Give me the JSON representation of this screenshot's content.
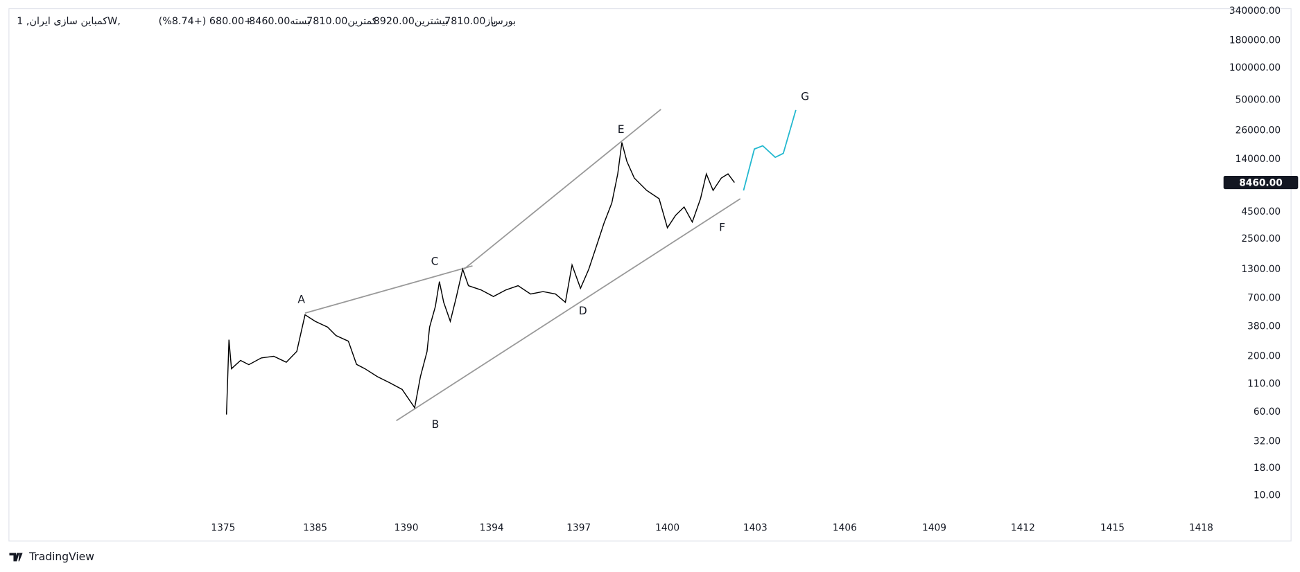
{
  "header": {
    "symbol": "کمباین سازی ایران, 1W, بورس",
    "open_label": "باز",
    "open": "7810.00",
    "high_label": "بیشترین",
    "high": "8920.00",
    "low_label": "کمترین",
    "low": "7810.00",
    "close_label": "بسته",
    "close": "8460.00",
    "change": "+680.00 (+8.74%)"
  },
  "chart_data": {
    "type": "line",
    "log_scale": true,
    "x": [
      1375.36,
      1375.63,
      1375.9,
      1376.89,
      1377.79,
      1379.14,
      1380.5,
      1381.86,
      1383.0,
      1383.9,
      1385.0,
      1385.68,
      1386.14,
      1386.82,
      1387.27,
      1387.73,
      1388.41,
      1389.09,
      1389.77,
      1390.39,
      1390.66,
      1390.97,
      1391.09,
      1391.36,
      1391.55,
      1391.75,
      1392.06,
      1392.33,
      1392.64,
      1392.91,
      1393.5,
      1394.06,
      1394.49,
      1394.91,
      1395.34,
      1395.77,
      1396.2,
      1396.54,
      1396.77,
      1397.06,
      1397.34,
      1397.62,
      1397.85,
      1398.12,
      1398.32,
      1398.46,
      1398.63,
      1398.88,
      1399.3,
      1399.72,
      1400.0,
      1400.28,
      1400.57,
      1400.85,
      1401.13,
      1401.33,
      1401.56,
      1401.84,
      1402.07,
      1402.29
    ],
    "series": [
      {
        "color": "#000000",
        "values": [
          57,
          286,
          153,
          183,
          167,
          193,
          200,
          176,
          222,
          489,
          425,
          375,
          313,
          277,
          168,
          153,
          129,
          113,
          98,
          66,
          129,
          222,
          375,
          585,
          1000,
          640,
          425,
          700,
          1306,
          915,
          836,
          725,
          836,
          915,
          765,
          806,
          765,
          640,
          1430,
          866,
          1306,
          2234,
          3490,
          5450,
          10180,
          20050,
          13310,
          9310,
          7130,
          5960,
          3190,
          4170,
          4990,
          3610,
          5960,
          10180,
          7130,
          9310,
          10180,
          8460
        ]
      }
    ],
    "xlim": [
      1375,
      1418
    ],
    "xticks": [
      1375,
      1385,
      1390,
      1394,
      1397,
      1400,
      1403,
      1406,
      1409,
      1412,
      1415,
      1418
    ],
    "ylim": [
      6.8,
      361000
    ],
    "yticks": [
      {
        "value": 340000,
        "label": "340000.00"
      },
      {
        "value": 180000,
        "label": "180000.00"
      },
      {
        "value": 100000,
        "label": "100000.00"
      },
      {
        "value": 50000,
        "label": "50000.00"
      },
      {
        "value": 26000,
        "label": "26000.00"
      },
      {
        "value": 14000,
        "label": "14000.00"
      },
      {
        "value": 4500,
        "label": "4500.00"
      },
      {
        "value": 2500,
        "label": "2500.00"
      },
      {
        "value": 1300,
        "label": "1300.00"
      },
      {
        "value": 700,
        "label": "700.00"
      },
      {
        "value": 380,
        "label": "380.00"
      },
      {
        "value": 200,
        "label": "200.00"
      },
      {
        "value": 110,
        "label": "110.00"
      },
      {
        "value": 60,
        "label": "60.00"
      },
      {
        "value": 32,
        "label": "32.00"
      },
      {
        "value": 18,
        "label": "18.00"
      },
      {
        "value": 10,
        "label": "10.00"
      }
    ],
    "last_price": {
      "value": 8460,
      "label": "8460.00"
    },
    "trendlines": [
      {
        "color": "#999999",
        "x": [
          1383.9,
          1393.1
        ],
        "y": [
          507,
          1403
        ]
      },
      {
        "color": "#999999",
        "x": [
          1392.7,
          1399.78
        ],
        "y": [
          1306,
          40900
        ]
      },
      {
        "color": "#999999",
        "x": [
          1389.45,
          1402.49
        ],
        "y": [
          49.9,
          5960
        ]
      },
      {
        "color": "#22b8cf",
        "x": [
          1402.6,
          1402.97,
          1403.25,
          1403.67,
          1403.94,
          1404.36
        ],
        "y": [
          7130,
          17390,
          18660,
          14560,
          15850,
          40300
        ]
      }
    ],
    "wave_labels": [
      {
        "text": "A",
        "x": 1383.5,
        "y": 674
      },
      {
        "text": "B",
        "x": 1391.36,
        "y": 45.6
      },
      {
        "text": "C",
        "x": 1391.33,
        "y": 1535
      },
      {
        "text": "D",
        "x": 1397.14,
        "y": 526
      },
      {
        "text": "E",
        "x": 1398.43,
        "y": 26240
      },
      {
        "text": "F",
        "x": 1401.87,
        "y": 3190
      },
      {
        "text": "G",
        "x": 1404.67,
        "y": 53600
      }
    ]
  },
  "footer": {
    "brand": "TradingView"
  }
}
